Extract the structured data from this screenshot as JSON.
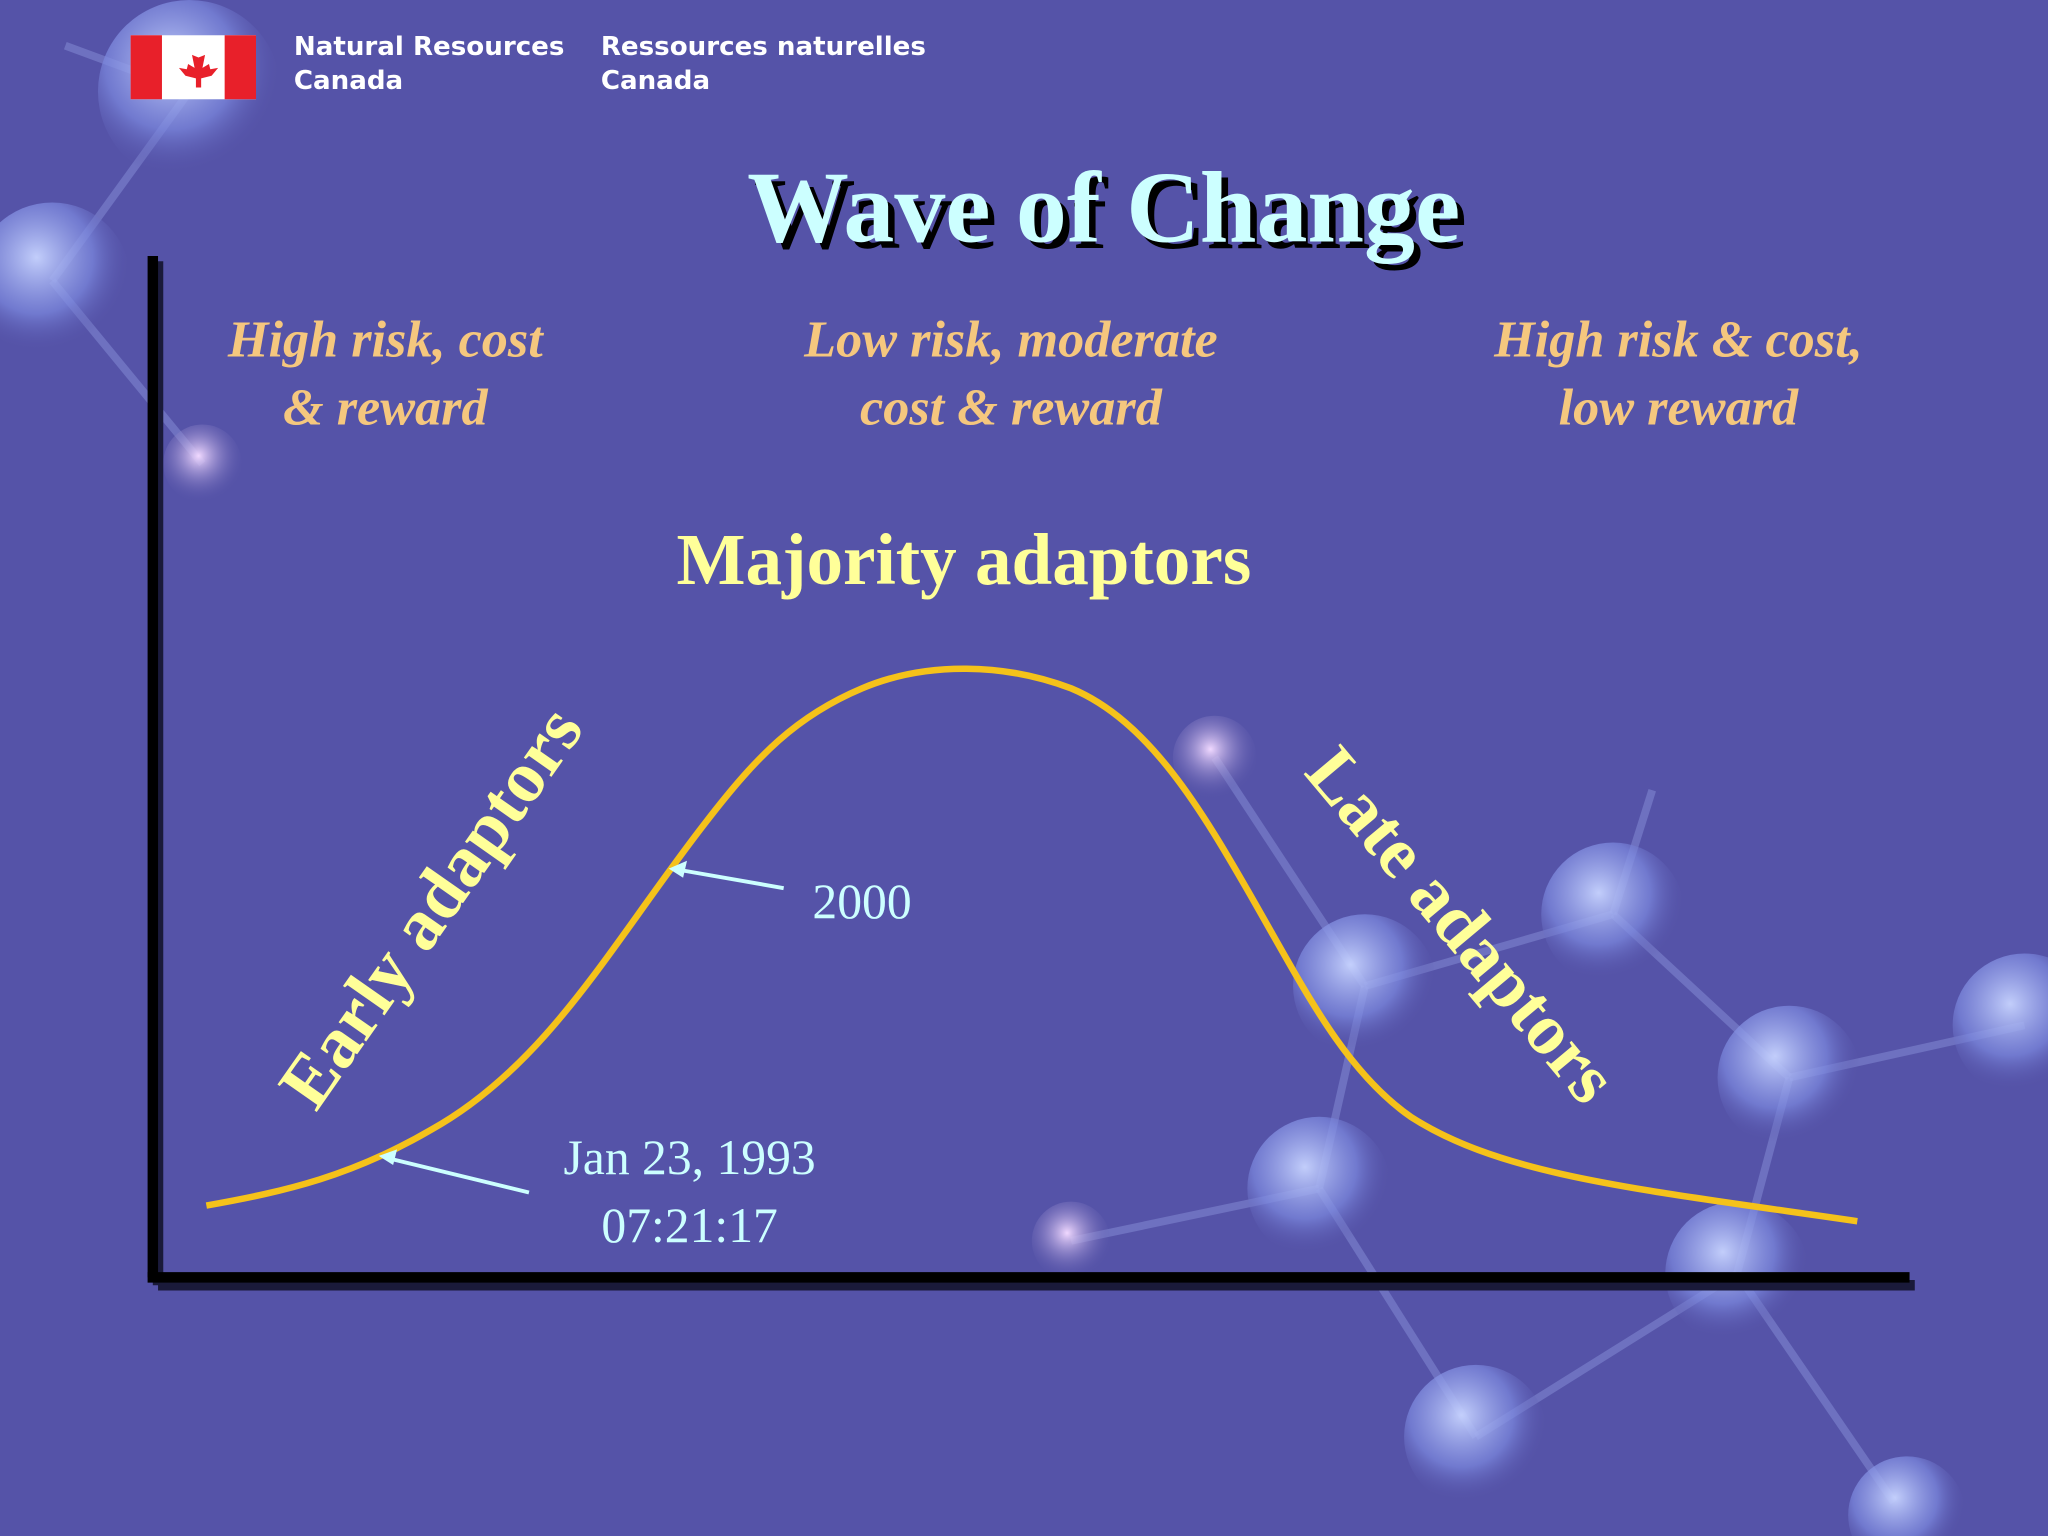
{
  "header": {
    "org_en": {
      "line1": "Natural Resources",
      "line2": "Canada"
    },
    "org_fr": {
      "line1": "Ressources naturelles",
      "line2": "Canada"
    }
  },
  "title": "Wave of Change",
  "zones": [
    {
      "line1": "High risk, cost",
      "line2": "& reward"
    },
    {
      "line1": "Low risk, moderate",
      "line2": "cost & reward"
    },
    {
      "line1": "High risk & cost,",
      "line2": "low reward"
    }
  ],
  "labels": {
    "majority": "Majority adaptors",
    "early": "Early adaptors",
    "late": "Late adaptors"
  },
  "annotations": [
    {
      "line1": "2000"
    },
    {
      "line1": "Jan 23, 1993",
      "line2": "07:21:17"
    }
  ]
}
